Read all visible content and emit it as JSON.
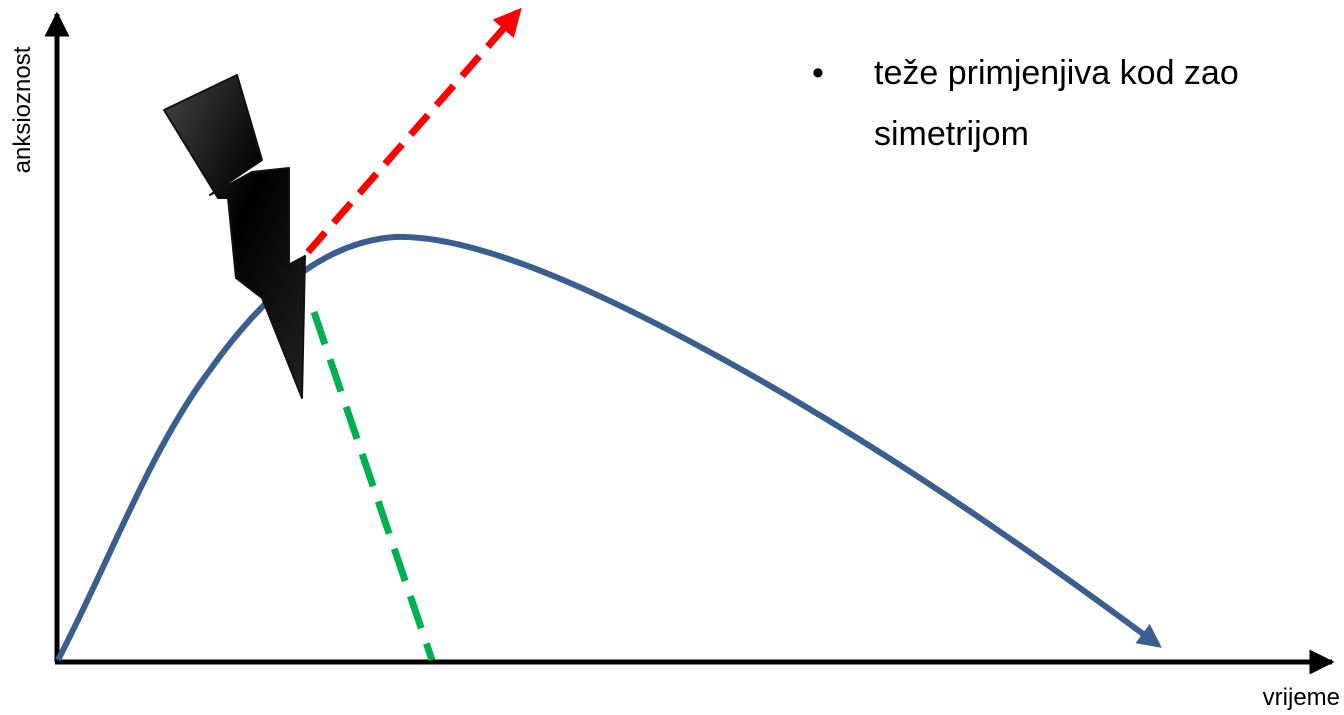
{
  "axes": {
    "y_label": "anksioznost",
    "x_label": "vrijeme"
  },
  "bullet": {
    "symbol": "•",
    "line1": "teže primjenjiva kod zao",
    "line2": "simetrijom"
  },
  "colors": {
    "axis": "#000000",
    "anxiety_curve": "#3a5f8f",
    "escalation_arrow": "#ff0000",
    "drop_line": "#00b050",
    "lightning": "#000000"
  }
}
